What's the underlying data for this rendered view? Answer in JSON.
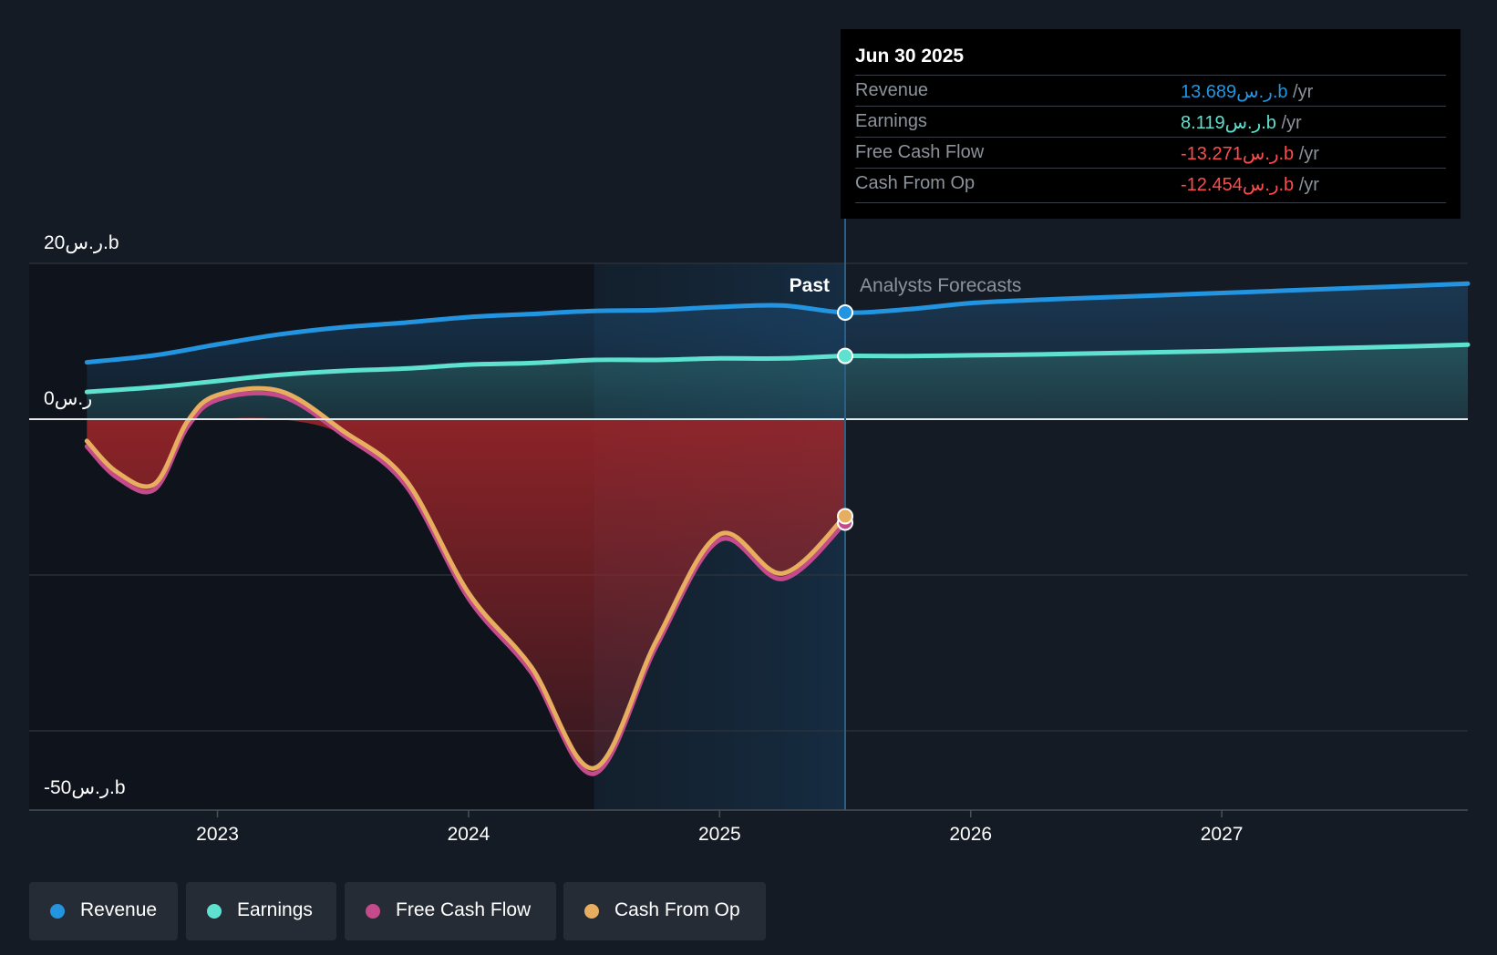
{
  "colors": {
    "revenue": "#2394df",
    "earnings": "#5fe1cf",
    "free_cash_flow": "#c44a8c",
    "cash_from_op": "#e6ae5e",
    "negative": "#ff4c4c",
    "background": "#151b24"
  },
  "tooltip": {
    "date": "Jun 30 2025",
    "rows": [
      {
        "label": "Revenue",
        "value": "13.689ر.س.b",
        "unit": " /yr"
      },
      {
        "label": "Earnings",
        "value": "8.119ر.س.b",
        "unit": " /yr"
      },
      {
        "label": "Free Cash Flow",
        "value": "-13.271ر.س.b",
        "unit": " /yr"
      },
      {
        "label": "Cash From Op",
        "value": "-12.454ر.س.b",
        "unit": " /yr"
      }
    ]
  },
  "legend": [
    {
      "label": "Revenue",
      "color": "#2394df"
    },
    {
      "label": "Earnings",
      "color": "#5fe1cf"
    },
    {
      "label": "Free Cash Flow",
      "color": "#c44a8c"
    },
    {
      "label": "Cash From Op",
      "color": "#e6ae5e"
    }
  ],
  "chart_data": {
    "type": "line",
    "title": "",
    "xlabel": "",
    "ylabel": "",
    "ylim": [
      -50,
      20
    ],
    "xlim": [
      2022.25,
      2027.98
    ],
    "y_tick_labels": [
      {
        "value": 20,
        "label": "20ر.س.b"
      },
      {
        "value": 0,
        "label": "0ر.س"
      },
      {
        "value": -50,
        "label": "-50ر.س.b"
      }
    ],
    "y_gridlines": [
      20,
      0,
      -20,
      -40
    ],
    "x_ticks": [
      2023,
      2024,
      2025,
      2026,
      2027
    ],
    "x_tick_labels": [
      "2023",
      "2024",
      "2025",
      "2026",
      "2027"
    ],
    "divider_x": 2025.5,
    "highlight_start_x": 2024.5,
    "past_label": "Past",
    "forecast_label": "Analysts Forecasts",
    "series": [
      {
        "name": "Revenue",
        "key": "revenue",
        "x": [
          2022.48,
          2022.75,
          2023.0,
          2023.25,
          2023.5,
          2023.75,
          2024.0,
          2024.25,
          2024.5,
          2024.75,
          2025.0,
          2025.25,
          2025.5,
          2025.75,
          2026.0,
          2026.25,
          2026.5,
          2026.75,
          2027.0,
          2027.25,
          2027.5,
          2027.75,
          2027.98
        ],
        "values": [
          7.3,
          8.2,
          9.6,
          10.9,
          11.8,
          12.4,
          13.1,
          13.5,
          13.9,
          14.0,
          14.4,
          14.6,
          13.689,
          14.1,
          14.9,
          15.3,
          15.6,
          15.9,
          16.2,
          16.5,
          16.8,
          17.1,
          17.4
        ],
        "forecast_from": 2025.5
      },
      {
        "name": "Earnings",
        "key": "earnings",
        "x": [
          2022.48,
          2022.75,
          2023.0,
          2023.25,
          2023.5,
          2023.75,
          2024.0,
          2024.25,
          2024.5,
          2024.75,
          2025.0,
          2025.25,
          2025.5,
          2025.75,
          2026.0,
          2026.25,
          2026.5,
          2026.75,
          2027.0,
          2027.25,
          2027.5,
          2027.75,
          2027.98
        ],
        "values": [
          3.5,
          4.1,
          4.9,
          5.7,
          6.2,
          6.5,
          7.0,
          7.2,
          7.6,
          7.6,
          7.8,
          7.8,
          8.119,
          8.1,
          8.2,
          8.3,
          8.45,
          8.6,
          8.75,
          8.95,
          9.15,
          9.35,
          9.55
        ],
        "forecast_from": 2025.5
      },
      {
        "name": "Free Cash Flow",
        "key": "free_cash_flow",
        "x": [
          2022.48,
          2022.6,
          2022.75,
          2022.88,
          2023.0,
          2023.25,
          2023.5,
          2023.75,
          2024.0,
          2024.25,
          2024.5,
          2024.75,
          2025.0,
          2025.25,
          2025.5
        ],
        "values": [
          -3.5,
          -7.5,
          -9.0,
          -1.0,
          2.5,
          3.0,
          -2.0,
          -8.5,
          -23.0,
          -32.5,
          -45.5,
          -29.0,
          -15.5,
          -20.5,
          -13.271
        ]
      },
      {
        "name": "Cash From Op",
        "key": "cash_from_op",
        "x": [
          2022.48,
          2022.6,
          2022.75,
          2022.88,
          2023.0,
          2023.25,
          2023.5,
          2023.75,
          2024.0,
          2024.25,
          2024.5,
          2024.75,
          2025.0,
          2025.25,
          2025.5
        ],
        "values": [
          -2.8,
          -6.8,
          -8.3,
          -0.3,
          3.1,
          3.6,
          -1.5,
          -7.8,
          -22.3,
          -31.8,
          -44.8,
          -28.3,
          -14.8,
          -19.8,
          -12.454
        ]
      }
    ]
  }
}
